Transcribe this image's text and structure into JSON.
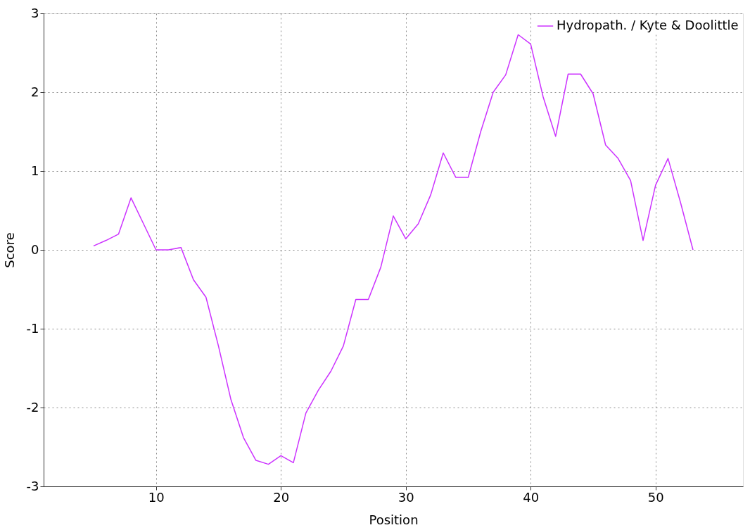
{
  "chart_data": {
    "type": "line",
    "xlabel": "Position",
    "ylabel": "Score",
    "x": [
      5,
      6,
      7,
      8,
      9,
      10,
      11,
      12,
      13,
      14,
      15,
      16,
      17,
      18,
      19,
      20,
      21,
      22,
      23,
      24,
      25,
      26,
      27,
      28,
      29,
      30,
      31,
      32,
      33,
      34,
      35,
      36,
      37,
      38,
      39,
      40,
      41,
      42,
      43,
      44,
      45,
      46,
      47,
      48,
      49,
      50,
      51,
      52,
      53
    ],
    "series": [
      {
        "name": "Hydropath. / Kyte & Doolittle",
        "color": "#cc33ff",
        "values": [
          0.05,
          0.12,
          0.2,
          0.66,
          0.33,
          0.0,
          0.0,
          0.03,
          -0.38,
          -0.6,
          -1.22,
          -1.9,
          -2.38,
          -2.67,
          -2.72,
          -2.61,
          -2.7,
          -2.07,
          -1.78,
          -1.54,
          -1.22,
          -0.63,
          -0.63,
          -0.22,
          0.43,
          0.14,
          0.33,
          0.7,
          1.23,
          0.92,
          0.92,
          1.5,
          2.0,
          2.22,
          2.73,
          2.61,
          1.94,
          1.44,
          2.23,
          2.23,
          1.98,
          1.33,
          1.16,
          0.88,
          0.12,
          0.82,
          1.16,
          0.6,
          0.0
        ]
      }
    ],
    "xlim": [
      1,
      57
    ],
    "xticks": [
      10,
      20,
      30,
      40,
      50
    ],
    "ylim": [
      -3,
      3
    ],
    "yticks": [
      -3,
      -2,
      -1,
      0,
      1,
      2,
      3
    ],
    "grid": true,
    "legend": "top right",
    "marker": "none",
    "line_style": "solid"
  }
}
